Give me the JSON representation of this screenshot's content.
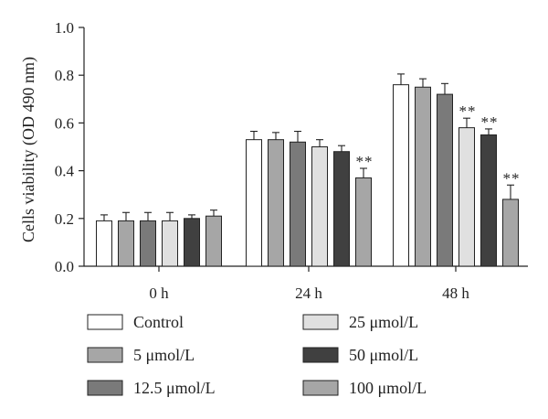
{
  "chart_data": {
    "type": "bar",
    "ylabel": "Cells viability (OD 490 nm)",
    "xlabel": "",
    "ylim": [
      0,
      1.0
    ],
    "yticks": [
      "0.0",
      "0.2",
      "0.4",
      "0.6",
      "0.8",
      "1.0"
    ],
    "categories": [
      "0 h",
      "24 h",
      "48 h"
    ],
    "series": [
      {
        "name": "Control",
        "color": "#ffffff",
        "values": [
          0.19,
          0.53,
          0.76
        ],
        "errors": [
          0.025,
          0.035,
          0.045
        ],
        "sig": [
          "",
          "",
          ""
        ]
      },
      {
        "name": "5 μmol/L",
        "color": "#a6a6a6",
        "values": [
          0.19,
          0.53,
          0.75
        ],
        "errors": [
          0.035,
          0.03,
          0.035
        ],
        "sig": [
          "",
          "",
          ""
        ]
      },
      {
        "name": "12.5 μmol/L",
        "color": "#7a7a7a",
        "values": [
          0.19,
          0.52,
          0.72
        ],
        "errors": [
          0.035,
          0.045,
          0.045
        ],
        "sig": [
          "",
          "",
          ""
        ]
      },
      {
        "name": "25 μmol/L",
        "color": "#e0e0e0",
        "values": [
          0.19,
          0.5,
          0.58
        ],
        "errors": [
          0.035,
          0.03,
          0.04
        ],
        "sig": [
          "",
          "",
          "**"
        ]
      },
      {
        "name": "50 μmol/L",
        "color": "#404040",
        "values": [
          0.2,
          0.48,
          0.55
        ],
        "errors": [
          0.015,
          0.025,
          0.025
        ],
        "sig": [
          "",
          "",
          "**"
        ]
      },
      {
        "name": "100 μmol/L",
        "color": "#a6a6a6",
        "values": [
          0.21,
          0.37,
          0.28
        ],
        "errors": [
          0.025,
          0.04,
          0.06
        ],
        "sig": [
          "",
          "**",
          "**"
        ]
      }
    ],
    "legend": {
      "placement": "bottom",
      "columns": 2,
      "order": [
        0,
        3,
        1,
        4,
        2,
        5
      ]
    },
    "grid": false
  }
}
